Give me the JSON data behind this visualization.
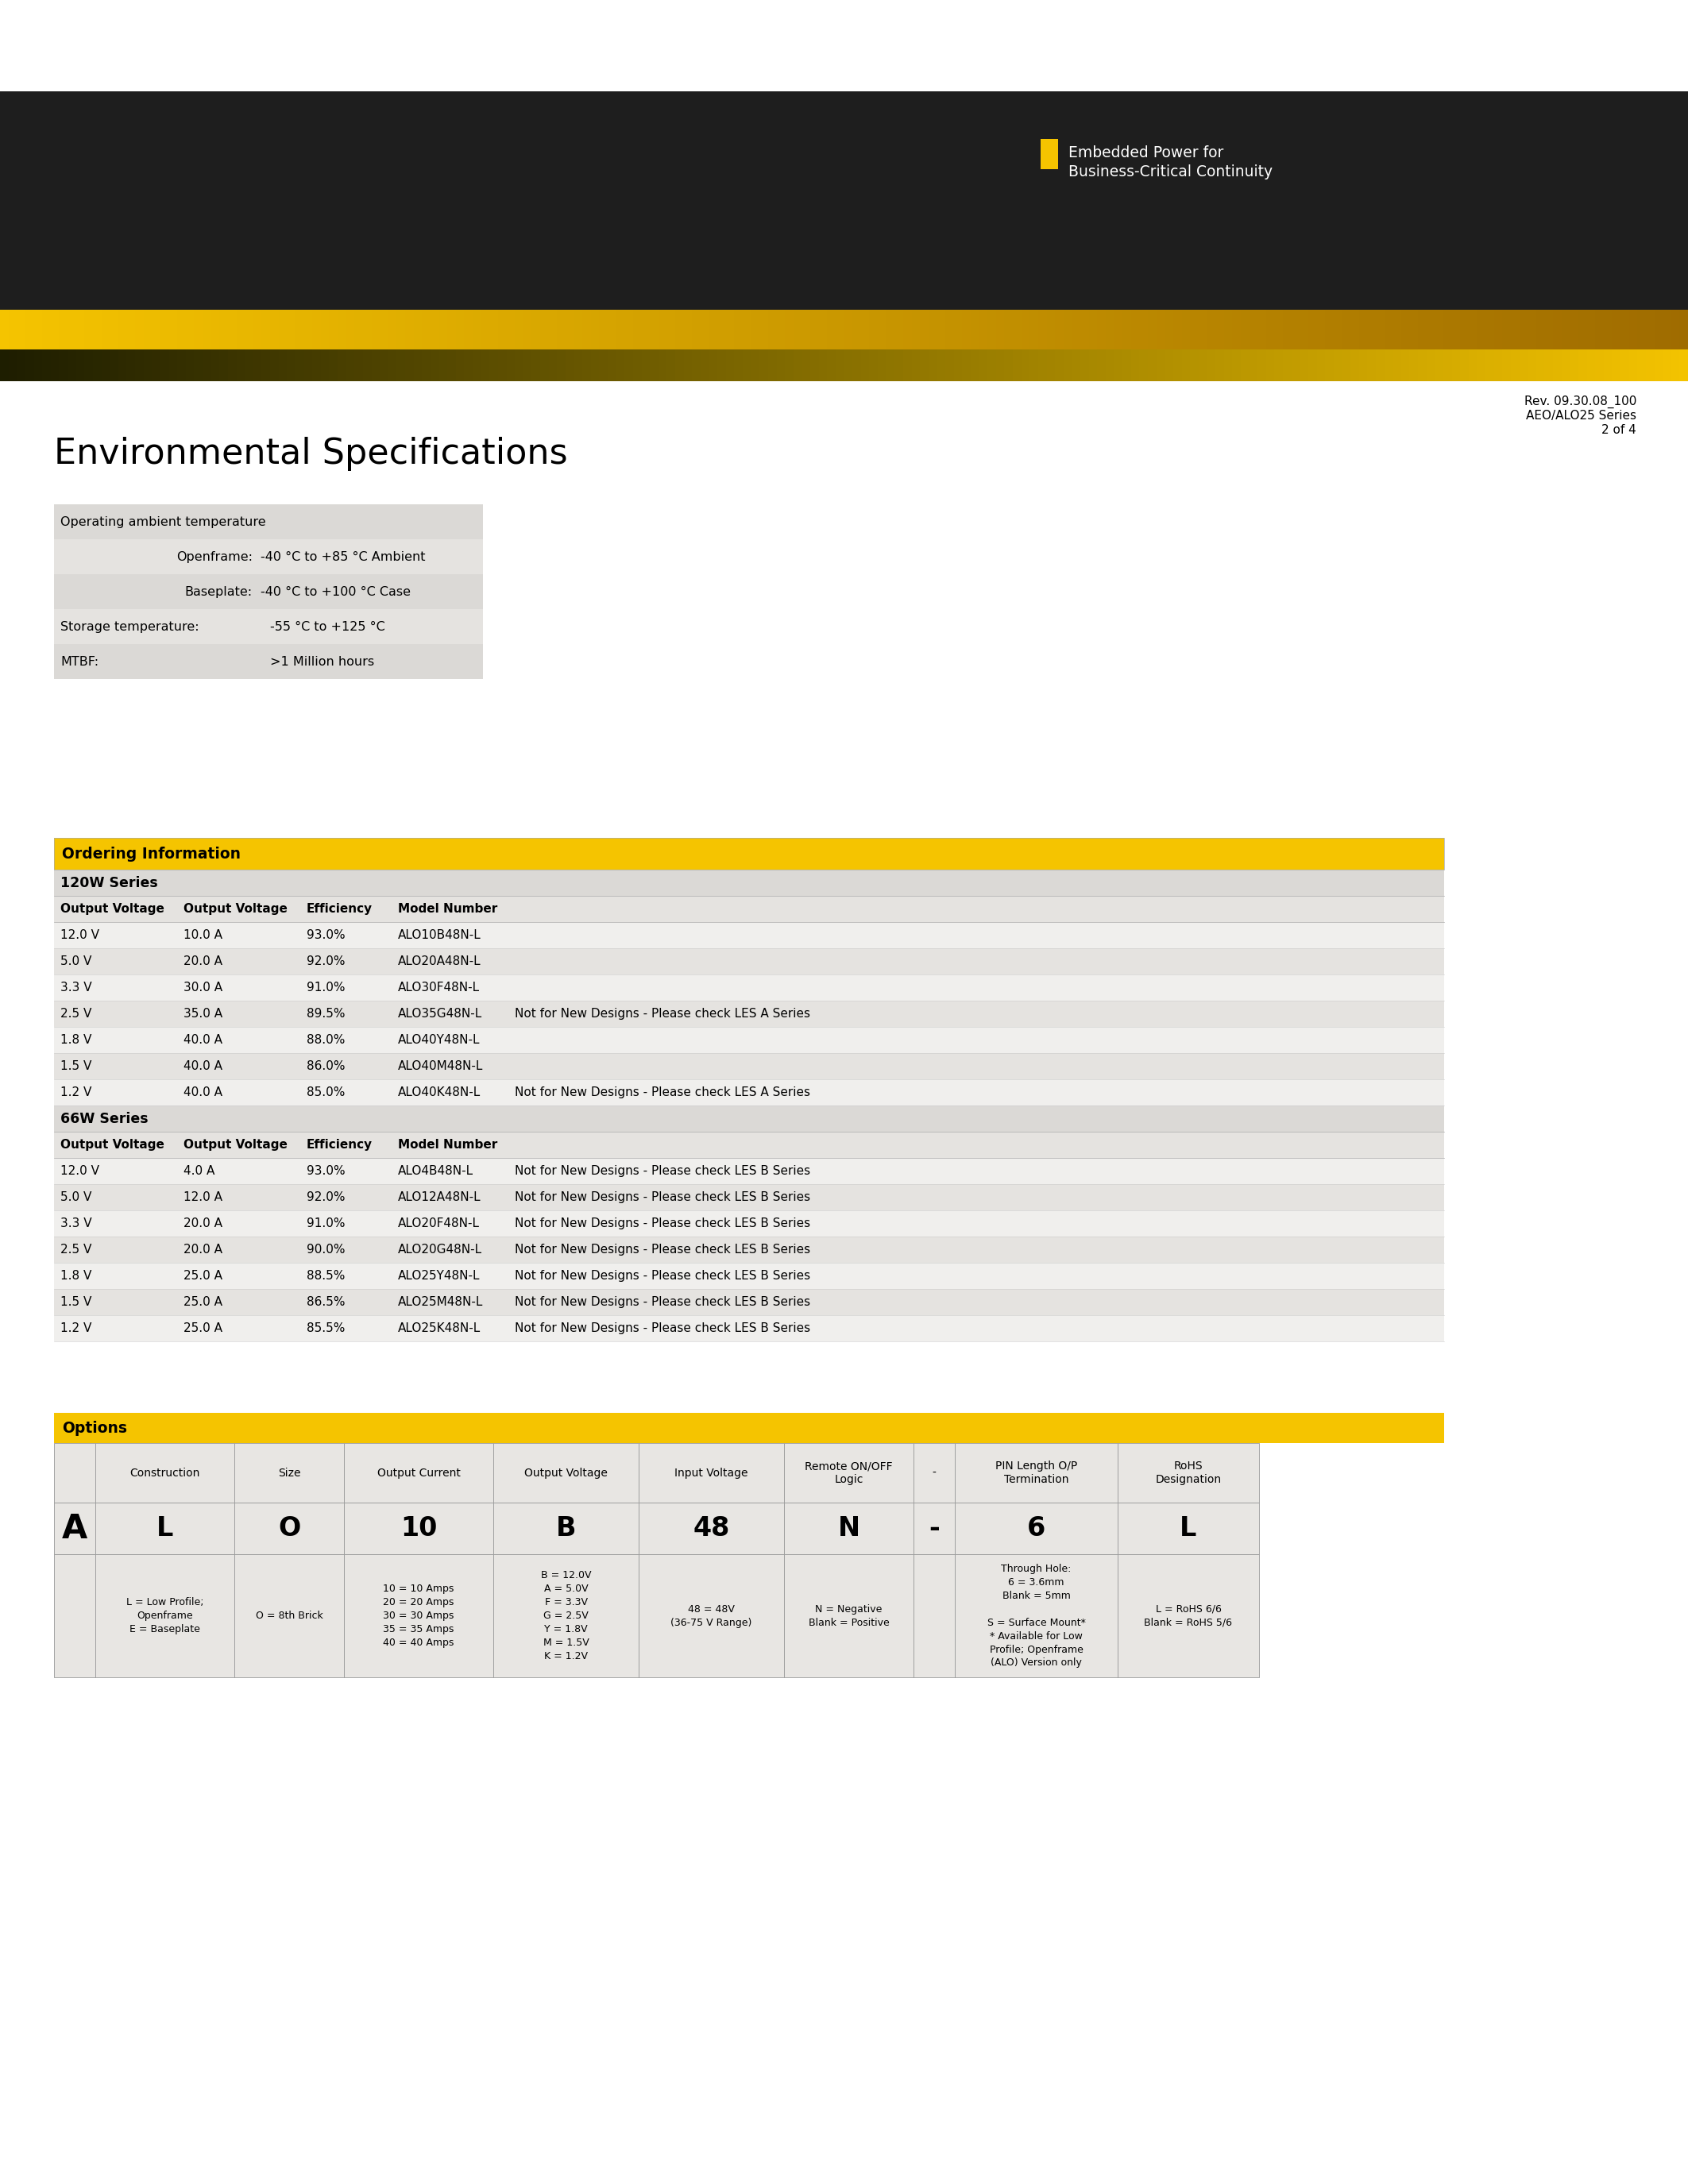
{
  "page_bg": "#ffffff",
  "header_dark_color": "#1e1e1e",
  "header_yellow_color": "#f5c400",
  "yellow_accent": "#f5c400",
  "text_dark": "#000000",
  "text_white": "#ffffff",
  "table_header_yellow": "#f5c400",
  "rev_text_line1": "Rev. 09.30.08_100",
  "rev_text_line2": "AEO/ALO25 Series",
  "rev_text_line3": "2 of 4",
  "env_title": "Environmental Specifications",
  "ordering_title": "Ordering Information",
  "series_120w_title": "120W Series",
  "series_120w_headers": [
    "Output Voltage",
    "Output Voltage",
    "Efficiency",
    "Model Number",
    ""
  ],
  "series_120w_rows": [
    [
      "12.0 V",
      "10.0 A",
      "93.0%",
      "ALO10B48N-L",
      ""
    ],
    [
      "5.0 V",
      "20.0 A",
      "92.0%",
      "ALO20A48N-L",
      ""
    ],
    [
      "3.3 V",
      "30.0 A",
      "91.0%",
      "ALO30F48N-L",
      ""
    ],
    [
      "2.5 V",
      "35.0 A",
      "89.5%",
      "ALO35G48N-L",
      "Not for New Designs - Please check LES A Series"
    ],
    [
      "1.8 V",
      "40.0 A",
      "88.0%",
      "ALO40Y48N-L",
      ""
    ],
    [
      "1.5 V",
      "40.0 A",
      "86.0%",
      "ALO40M48N-L",
      ""
    ],
    [
      "1.2 V",
      "40.0 A",
      "85.0%",
      "ALO40K48N-L",
      "Not for New Designs - Please check LES A Series"
    ]
  ],
  "series_66w_title": "66W Series",
  "series_66w_headers": [
    "Output Voltage",
    "Output Voltage",
    "Efficiency",
    "Model Number",
    ""
  ],
  "series_66w_rows": [
    [
      "12.0 V",
      "4.0 A",
      "93.0%",
      "ALO4B48N-L",
      "Not for New Designs - Please check LES B Series"
    ],
    [
      "5.0 V",
      "12.0 A",
      "92.0%",
      "ALO12A48N-L",
      "Not for New Designs - Please check LES B Series"
    ],
    [
      "3.3 V",
      "20.0 A",
      "91.0%",
      "ALO20F48N-L",
      "Not for New Designs - Please check LES B Series"
    ],
    [
      "2.5 V",
      "20.0 A",
      "90.0%",
      "ALO20G48N-L",
      "Not for New Designs - Please check LES B Series"
    ],
    [
      "1.8 V",
      "25.0 A",
      "88.5%",
      "ALO25Y48N-L",
      "Not for New Designs - Please check LES B Series"
    ],
    [
      "1.5 V",
      "25.0 A",
      "86.5%",
      "ALO25M48N-L",
      "Not for New Designs - Please check LES B Series"
    ],
    [
      "1.2 V",
      "25.0 A",
      "85.5%",
      "ALO25K48N-L",
      "Not for New Designs - Please check LES B Series"
    ]
  ],
  "options_title": "Options",
  "options_a_label": "A",
  "options_col_headers": [
    "Construction",
    "Size",
    "Output Current",
    "Output Voltage",
    "Input Voltage",
    "Remote ON/OFF\nLogic",
    "-",
    "PIN Length O/P\nTermination",
    "RoHS\nDesignation"
  ],
  "options_values": [
    "L",
    "O",
    "10",
    "B",
    "48",
    "N",
    "-",
    "6",
    "L"
  ],
  "options_details": [
    "L = Low Profile;\nOpenframe\nE = Baseplate",
    "O = 8th Brick",
    "10 = 10 Amps\n20 = 20 Amps\n30 = 30 Amps\n35 = 35 Amps\n40 = 40 Amps",
    "B = 12.0V\nA = 5.0V\nF = 3.3V\nG = 2.5V\nY = 1.8V\nM = 1.5V\nK = 1.2V",
    "48 = 48V\n(36-75 V Range)",
    "N = Negative\nBlank = Positive",
    "",
    "Through Hole:\n6 = 3.6mm\nBlank = 5mm\n\nS = Surface Mount*\n* Available for Low\nProfile; Openframe\n(ALO) Version only",
    "L = RoHS 6/6\nBlank = RoHS 5/6"
  ]
}
